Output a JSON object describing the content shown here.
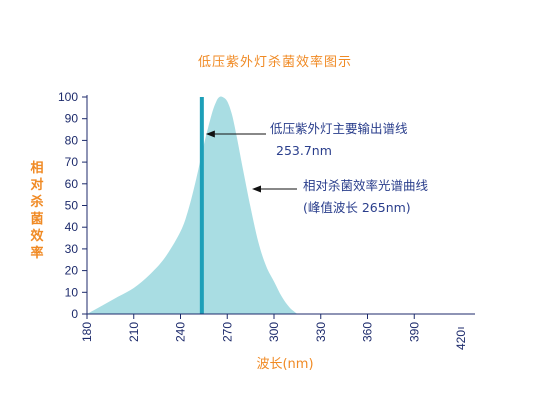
{
  "chart_data": {
    "type": "area",
    "title": "低压紫外灯杀菌效率图示",
    "xlabel": "波长(nm)",
    "ylabel": "相对杀菌效率",
    "x_ticks": [
      180,
      210,
      240,
      270,
      300,
      330,
      360,
      390,
      420
    ],
    "x_tick_labels": [
      "180",
      "210",
      "240",
      "270",
      "300",
      "330",
      "360",
      "390",
      "420"
    ],
    "y_ticks": [
      0,
      10,
      20,
      30,
      40,
      50,
      60,
      70,
      80,
      90,
      100
    ],
    "y_tick_labels": [
      "0",
      "10",
      "20",
      "30",
      "40",
      "50",
      "60",
      "70",
      "80",
      "90",
      "100"
    ],
    "xlim": [
      180,
      420
    ],
    "ylim": [
      0,
      100
    ],
    "grid": false,
    "series": [
      {
        "name": "相对杀菌效率光谱曲线",
        "type": "area",
        "color": "#a9dde3",
        "x": [
          180,
          190,
          200,
          210,
          220,
          230,
          240,
          245,
          250,
          255,
          260,
          263,
          265,
          267,
          270,
          273,
          276,
          280,
          285,
          290,
          295,
          300,
          305,
          310,
          315
        ],
        "y": [
          0,
          4,
          8,
          12,
          18,
          26,
          38,
          48,
          62,
          78,
          92,
          98,
          100,
          100,
          98,
          92,
          82,
          67,
          49,
          33,
          22,
          15,
          8,
          3,
          0
        ]
      },
      {
        "name": "低压紫外灯主要输出谱线",
        "type": "line",
        "color": "#1d9fb8",
        "x": [
          253.7,
          253.7
        ],
        "y": [
          0,
          100
        ]
      }
    ],
    "annotations": [
      {
        "line1": "低压紫外灯主要输出谱线",
        "line2": "253.7nm"
      },
      {
        "line1": "相对杀菌效率光谱曲线",
        "line2": "(峰值波长 265nm)"
      }
    ]
  }
}
